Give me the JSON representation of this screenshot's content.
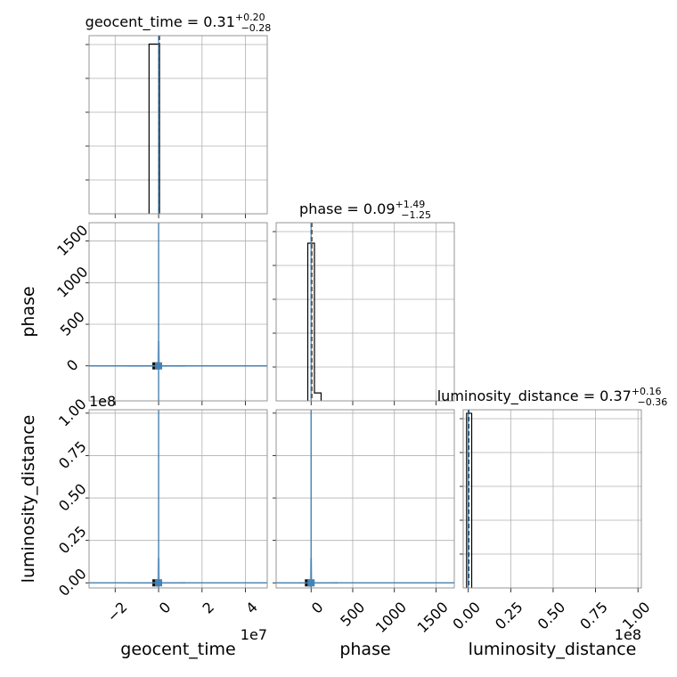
{
  "chart_data": {
    "type": "corner",
    "parameters": [
      "geocent_time",
      "phase",
      "luminosity_distance"
    ],
    "titles": [
      {
        "param": "geocent_time",
        "median": "0.31",
        "plus": "+0.20",
        "minus": "−0.28"
      },
      {
        "param": "phase",
        "median": "0.09",
        "plus": "+1.49",
        "minus": "−1.25"
      },
      {
        "param": "luminosity_distance",
        "median": "0.37",
        "plus": "+0.16",
        "minus": "−0.36"
      }
    ],
    "axes": {
      "geocent_time": {
        "range": [
          -32000000,
          50000000
        ],
        "ticks": [
          -20000000,
          0,
          20000000,
          40000000
        ],
        "tick_labels": [
          "−2",
          "0",
          "2",
          "4"
        ],
        "offset_label": "1e7",
        "label": "geocent_time"
      },
      "phase": {
        "range": [
          -420,
          1720
        ],
        "ticks": [
          0,
          500,
          1000,
          1500
        ],
        "tick_labels": [
          "0",
          "500",
          "1000",
          "1500"
        ],
        "label": "phase"
      },
      "luminosity_distance": {
        "range": [
          -3000000,
          102000000
        ],
        "ticks": [
          0,
          25000000,
          50000000,
          75000000,
          100000000
        ],
        "tick_labels": [
          "0.00",
          "0.25",
          "0.50",
          "0.75",
          "1.00"
        ],
        "offset_label": "1e8",
        "label": "luminosity_distance"
      }
    },
    "histograms": {
      "geocent_time": {
        "bin_edges": [
          -4400000,
          0,
          400000
        ],
        "counts": [
          1.0,
          1.0
        ],
        "ylim": [
          0,
          1.05
        ]
      },
      "phase": {
        "bin_edges": [
          -40,
          0,
          40,
          120
        ],
        "counts": [
          1.0,
          1.0,
          0.05
        ],
        "ylim": [
          0,
          1.13
        ]
      },
      "luminosity_distance": {
        "bin_edges": [
          -1000000,
          0,
          2000000
        ],
        "counts": [
          1.0,
          1.0
        ],
        "ylim": [
          0,
          1.02
        ]
      }
    },
    "quantile_lines": {
      "geocent_time": [
        0.0,
        400000
      ],
      "phase": [
        0.0,
        9.0
      ],
      "luminosity_distance": [
        0.0,
        370000
      ]
    },
    "truths": {
      "geocent_time": 0.0,
      "phase": 0.0,
      "luminosity_distance": 0.0
    },
    "truth_color": "#4682b4",
    "hist_color": "#000000",
    "grid": true
  }
}
